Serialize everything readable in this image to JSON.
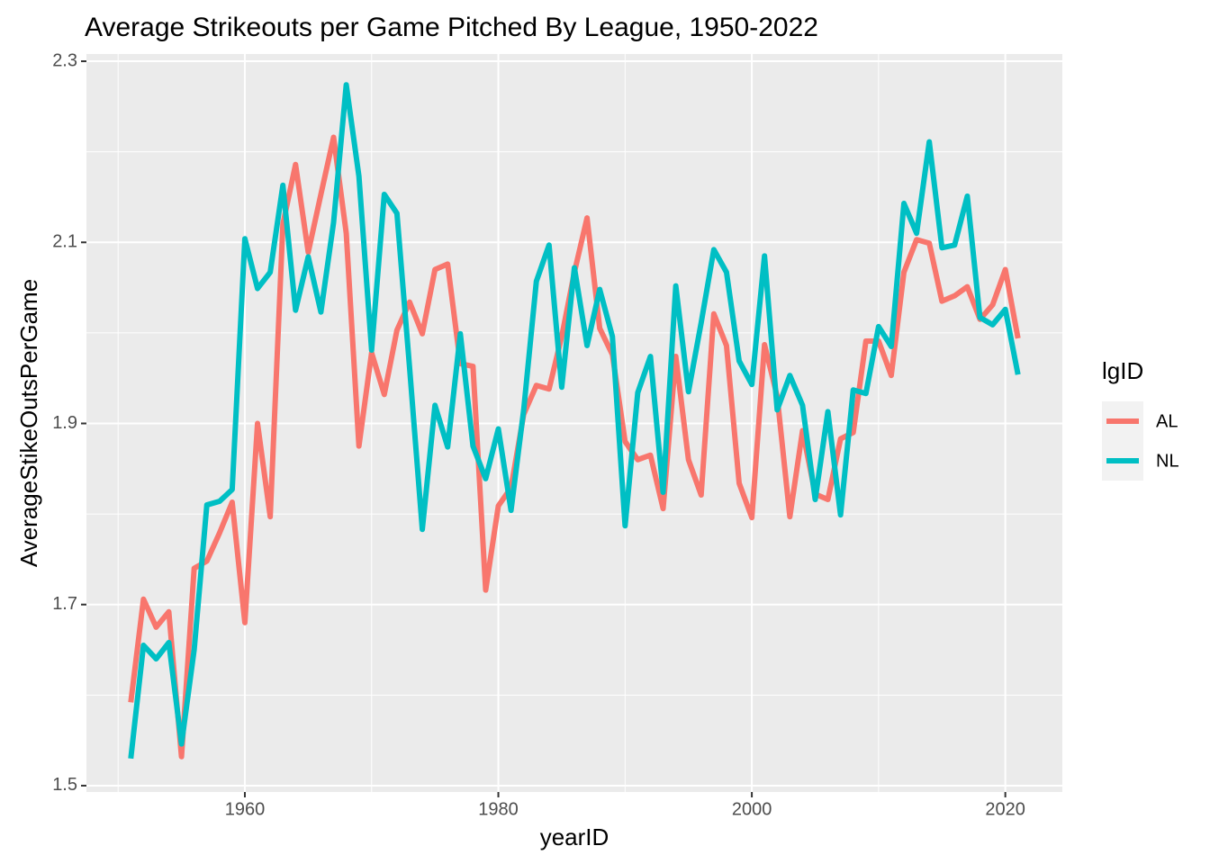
{
  "chart_data": {
    "type": "line",
    "title": "Average Strikeouts per Game Pitched By League, 1950-2022",
    "x_label": "yearID",
    "y_label": "AverageStikeOutsPerGame",
    "legend_title": "lgID",
    "legend_position": "right",
    "grid": true,
    "x": [
      1951,
      1952,
      1953,
      1954,
      1955,
      1956,
      1957,
      1958,
      1959,
      1960,
      1961,
      1962,
      1963,
      1964,
      1965,
      1966,
      1967,
      1968,
      1969,
      1970,
      1971,
      1972,
      1973,
      1974,
      1975,
      1976,
      1977,
      1978,
      1979,
      1980,
      1981,
      1982,
      1983,
      1984,
      1985,
      1986,
      1987,
      1988,
      1989,
      1990,
      1991,
      1992,
      1993,
      1994,
      1995,
      1996,
      1997,
      1998,
      1999,
      2000,
      2001,
      2002,
      2003,
      2004,
      2005,
      2006,
      2007,
      2008,
      2009,
      2010,
      2011,
      2012,
      2013,
      2014,
      2015,
      2016,
      2017,
      2018,
      2019,
      2020,
      2021
    ],
    "series": [
      {
        "name": "AL",
        "color": "#F8766D",
        "values": [
          1.592,
          1.706,
          1.675,
          1.692,
          1.532,
          1.74,
          1.748,
          1.779,
          1.813,
          1.68,
          1.9,
          1.797,
          2.12,
          2.186,
          2.089,
          2.153,
          2.216,
          2.11,
          1.875,
          1.978,
          1.932,
          2.003,
          2.034,
          1.999,
          2.07,
          2.076,
          1.966,
          1.963,
          1.716,
          1.809,
          1.829,
          1.91,
          1.942,
          1.938,
          1.996,
          2.067,
          2.127,
          2.005,
          1.976,
          1.88,
          1.86,
          1.865,
          1.806,
          1.974,
          1.86,
          1.821,
          2.021,
          1.986,
          1.834,
          1.796,
          1.987,
          1.93,
          1.797,
          1.892,
          1.822,
          1.816,
          1.883,
          1.89,
          1.991,
          1.991,
          1.953,
          2.067,
          2.103,
          2.099,
          2.035,
          2.041,
          2.051,
          2.015,
          2.031,
          2.07,
          1.994
        ]
      },
      {
        "name": "NL",
        "color": "#00BFC4",
        "values": [
          1.53,
          1.655,
          1.64,
          1.658,
          1.546,
          1.65,
          1.81,
          1.814,
          1.827,
          2.104,
          2.049,
          2.067,
          2.163,
          2.025,
          2.084,
          2.023,
          2.122,
          2.274,
          2.173,
          1.981,
          2.153,
          2.132,
          1.961,
          1.783,
          1.92,
          1.874,
          1.999,
          1.875,
          1.839,
          1.894,
          1.804,
          1.915,
          2.057,
          2.097,
          1.94,
          2.072,
          1.986,
          2.048,
          1.996,
          1.787,
          1.934,
          1.974,
          1.824,
          2.052,
          1.935,
          2.011,
          2.092,
          2.067,
          1.969,
          1.943,
          2.085,
          1.915,
          1.953,
          1.92,
          1.816,
          1.913,
          1.799,
          1.937,
          1.933,
          2.007,
          1.985,
          2.143,
          2.11,
          2.211,
          2.094,
          2.097,
          2.151,
          2.017,
          2.009,
          2.026,
          1.954
        ]
      }
    ],
    "xlim": [
      1947.5,
      2024.5
    ],
    "xticks": [
      1960,
      1980,
      2000,
      2020
    ],
    "ylim": [
      1.493,
      2.308
    ],
    "yticks": [
      1.5,
      1.7,
      1.9,
      2.1,
      2.3
    ]
  }
}
